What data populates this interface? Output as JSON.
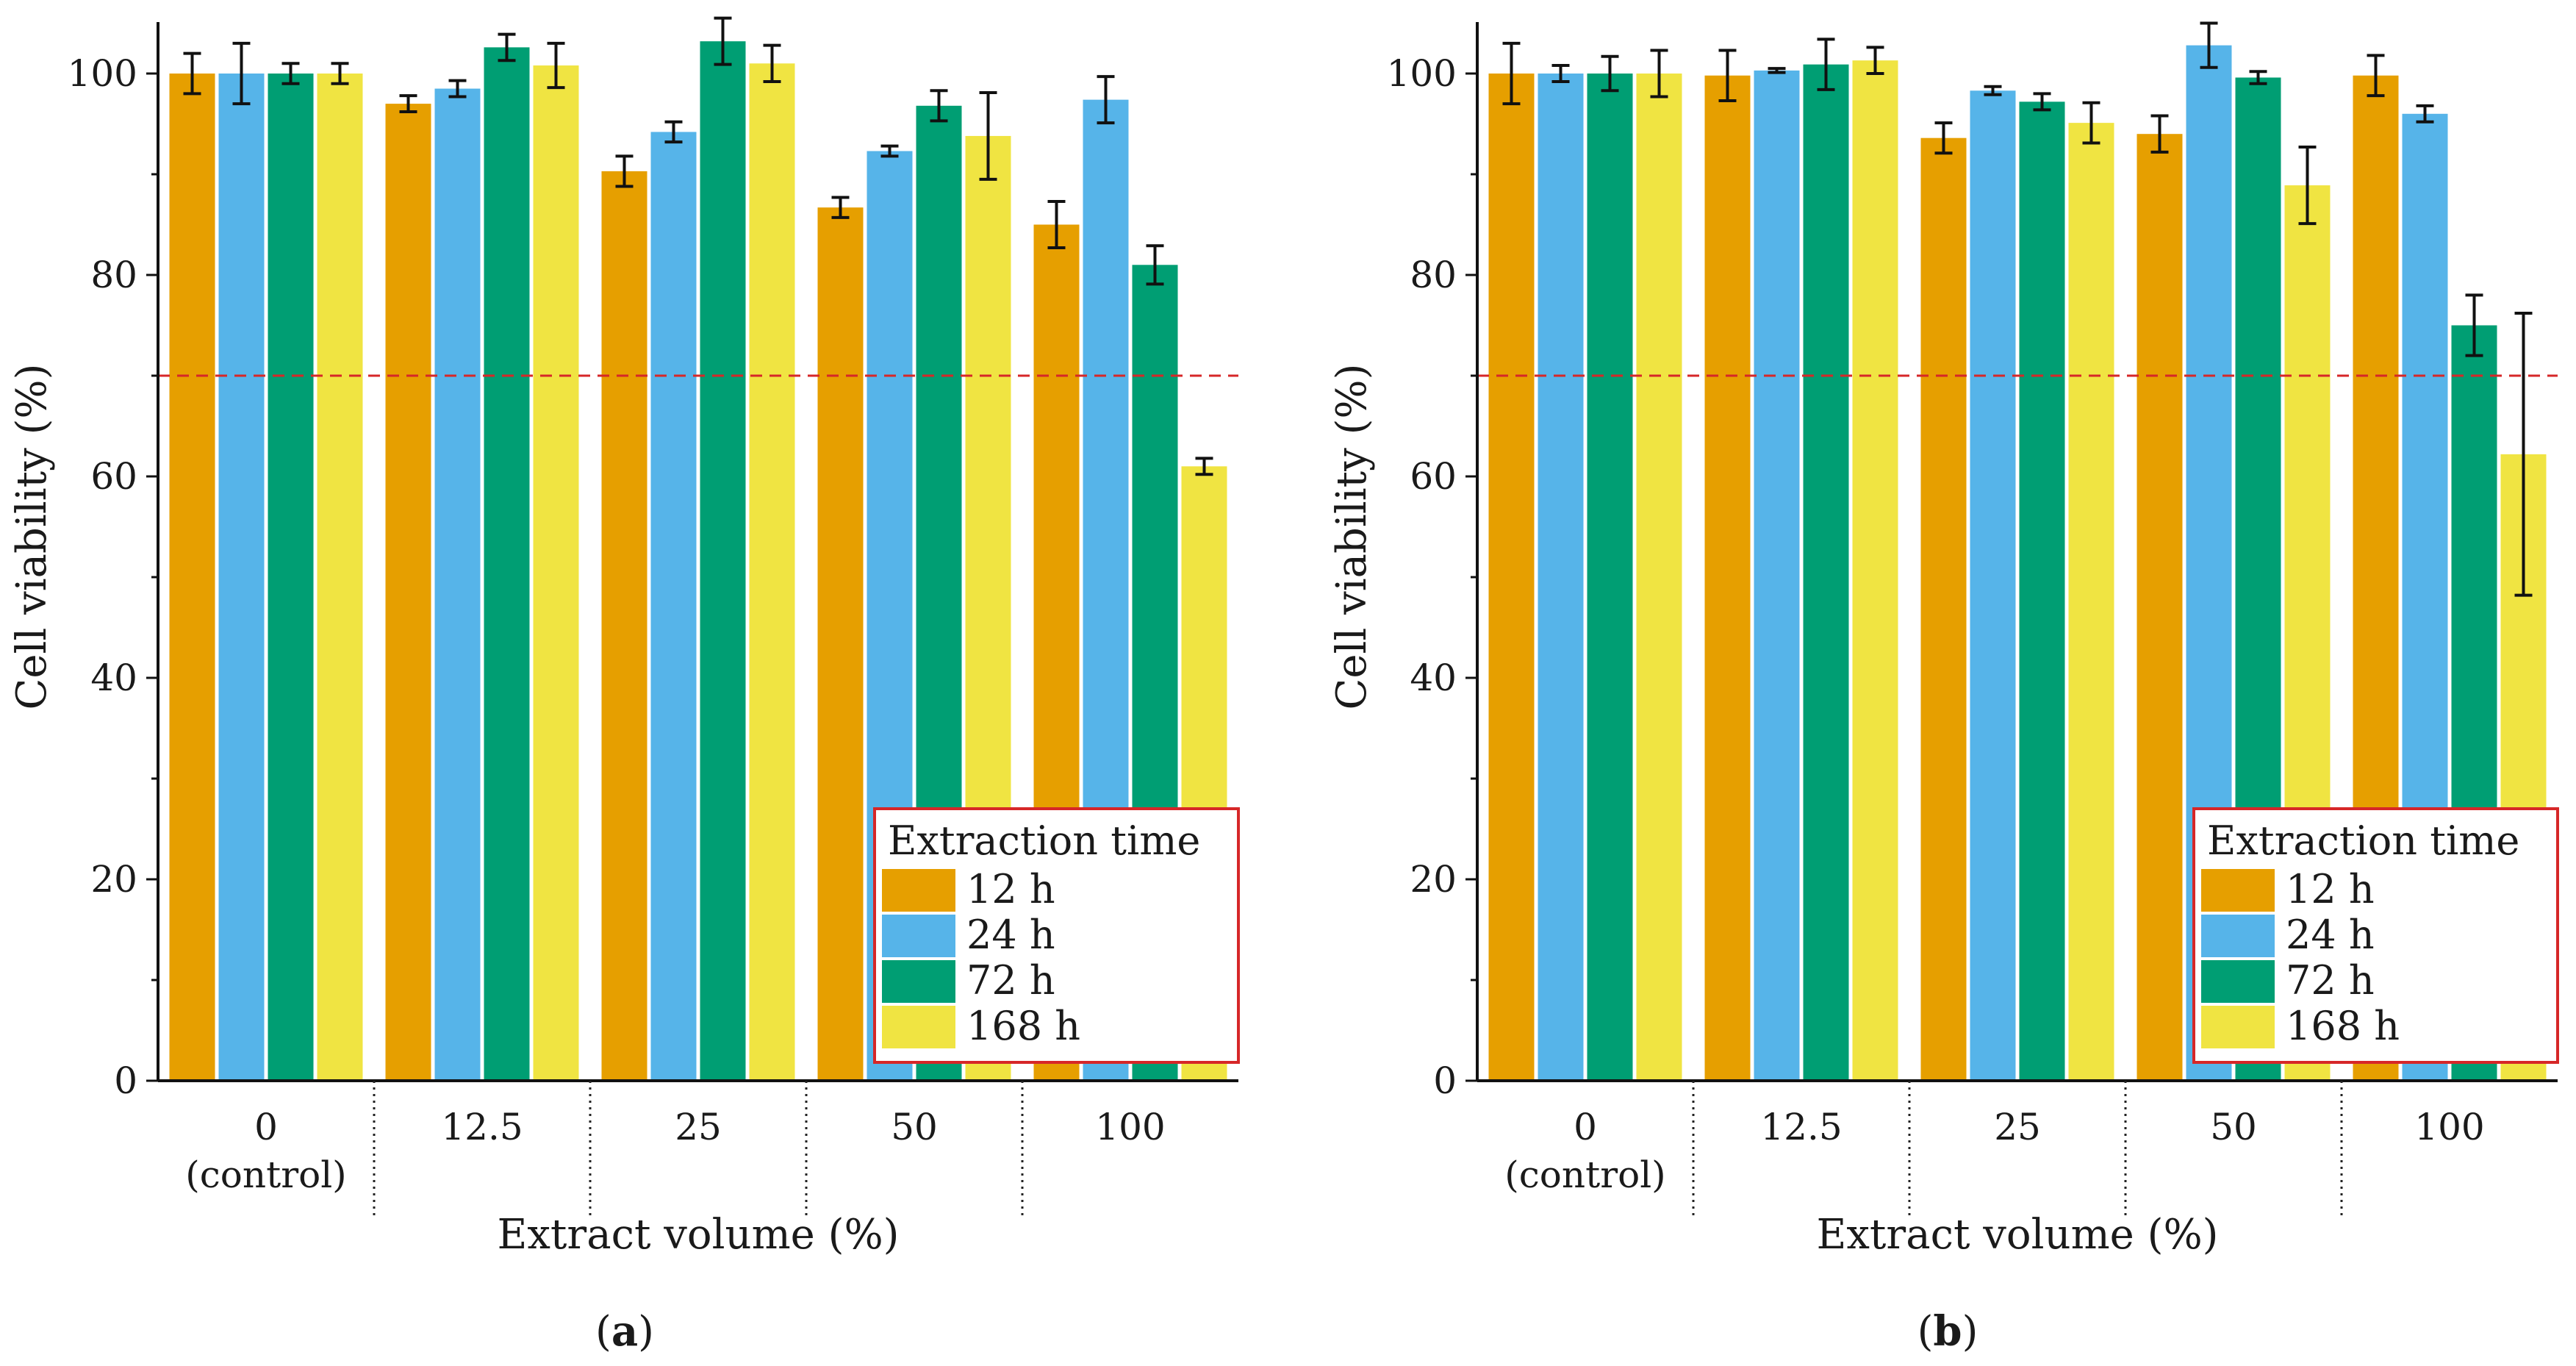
{
  "chart_data": [
    {
      "type": "bar",
      "panel_label": "a",
      "categories": [
        "0",
        "12.5",
        "25",
        "50",
        "100"
      ],
      "category_sublabels": [
        "(control)",
        "",
        "",
        "",
        ""
      ],
      "xlabel": "Extract volume (%)",
      "ylabel": "Cell viability (%)",
      "ylim": [
        0,
        100
      ],
      "yticks": [
        "0",
        "20",
        "40",
        "60",
        "80",
        "100"
      ],
      "threshold": 70,
      "legend_title": "Extraction time",
      "legend_position": "bottom-right",
      "series": [
        {
          "name": "12 h",
          "color": "#E69F00",
          "values": [
            100.0,
            97.0,
            90.3,
            86.7,
            85.0
          ],
          "errors": [
            2.0,
            0.8,
            1.5,
            1.0,
            2.3
          ]
        },
        {
          "name": "24 h",
          "color": "#56B4E9",
          "values": [
            100.0,
            98.5,
            94.2,
            92.3,
            97.4
          ],
          "errors": [
            3.0,
            0.8,
            1.0,
            0.5,
            2.3
          ]
        },
        {
          "name": "72 h",
          "color": "#009E73",
          "values": [
            100.0,
            102.6,
            103.2,
            96.8,
            81.0
          ],
          "errors": [
            1.0,
            1.3,
            2.3,
            1.5,
            1.9
          ]
        },
        {
          "name": "168 h",
          "color": "#F0E442",
          "values": [
            100.0,
            100.8,
            101.0,
            93.8,
            61.0
          ],
          "errors": [
            1.0,
            2.2,
            1.8,
            4.3,
            0.8
          ]
        }
      ]
    },
    {
      "type": "bar",
      "panel_label": "b",
      "categories": [
        "0",
        "12.5",
        "25",
        "50",
        "100"
      ],
      "category_sublabels": [
        "(control)",
        "",
        "",
        "",
        ""
      ],
      "xlabel": "Extract volume (%)",
      "ylabel": "Cell viability (%)",
      "ylim": [
        0,
        100
      ],
      "yticks": [
        "0",
        "20",
        "40",
        "60",
        "80",
        "100"
      ],
      "threshold": 70,
      "legend_title": "Extraction time",
      "legend_position": "bottom-right",
      "series": [
        {
          "name": "12 h",
          "color": "#E69F00",
          "values": [
            100.0,
            99.8,
            93.6,
            94.0,
            99.8
          ],
          "errors": [
            3.0,
            2.5,
            1.5,
            1.8,
            2.0
          ]
        },
        {
          "name": "24 h",
          "color": "#56B4E9",
          "values": [
            100.0,
            100.3,
            98.3,
            102.8,
            96.0
          ],
          "errors": [
            0.8,
            0.2,
            0.4,
            2.2,
            0.8
          ]
        },
        {
          "name": "72 h",
          "color": "#009E73",
          "values": [
            100.0,
            100.9,
            97.2,
            99.6,
            75.0
          ],
          "errors": [
            1.7,
            2.5,
            0.8,
            0.6,
            3.0
          ]
        },
        {
          "name": "168 h",
          "color": "#F0E442",
          "values": [
            100.0,
            101.3,
            95.1,
            88.9,
            62.2
          ],
          "errors": [
            2.3,
            1.3,
            2.0,
            3.8,
            14.0
          ]
        }
      ]
    }
  ]
}
